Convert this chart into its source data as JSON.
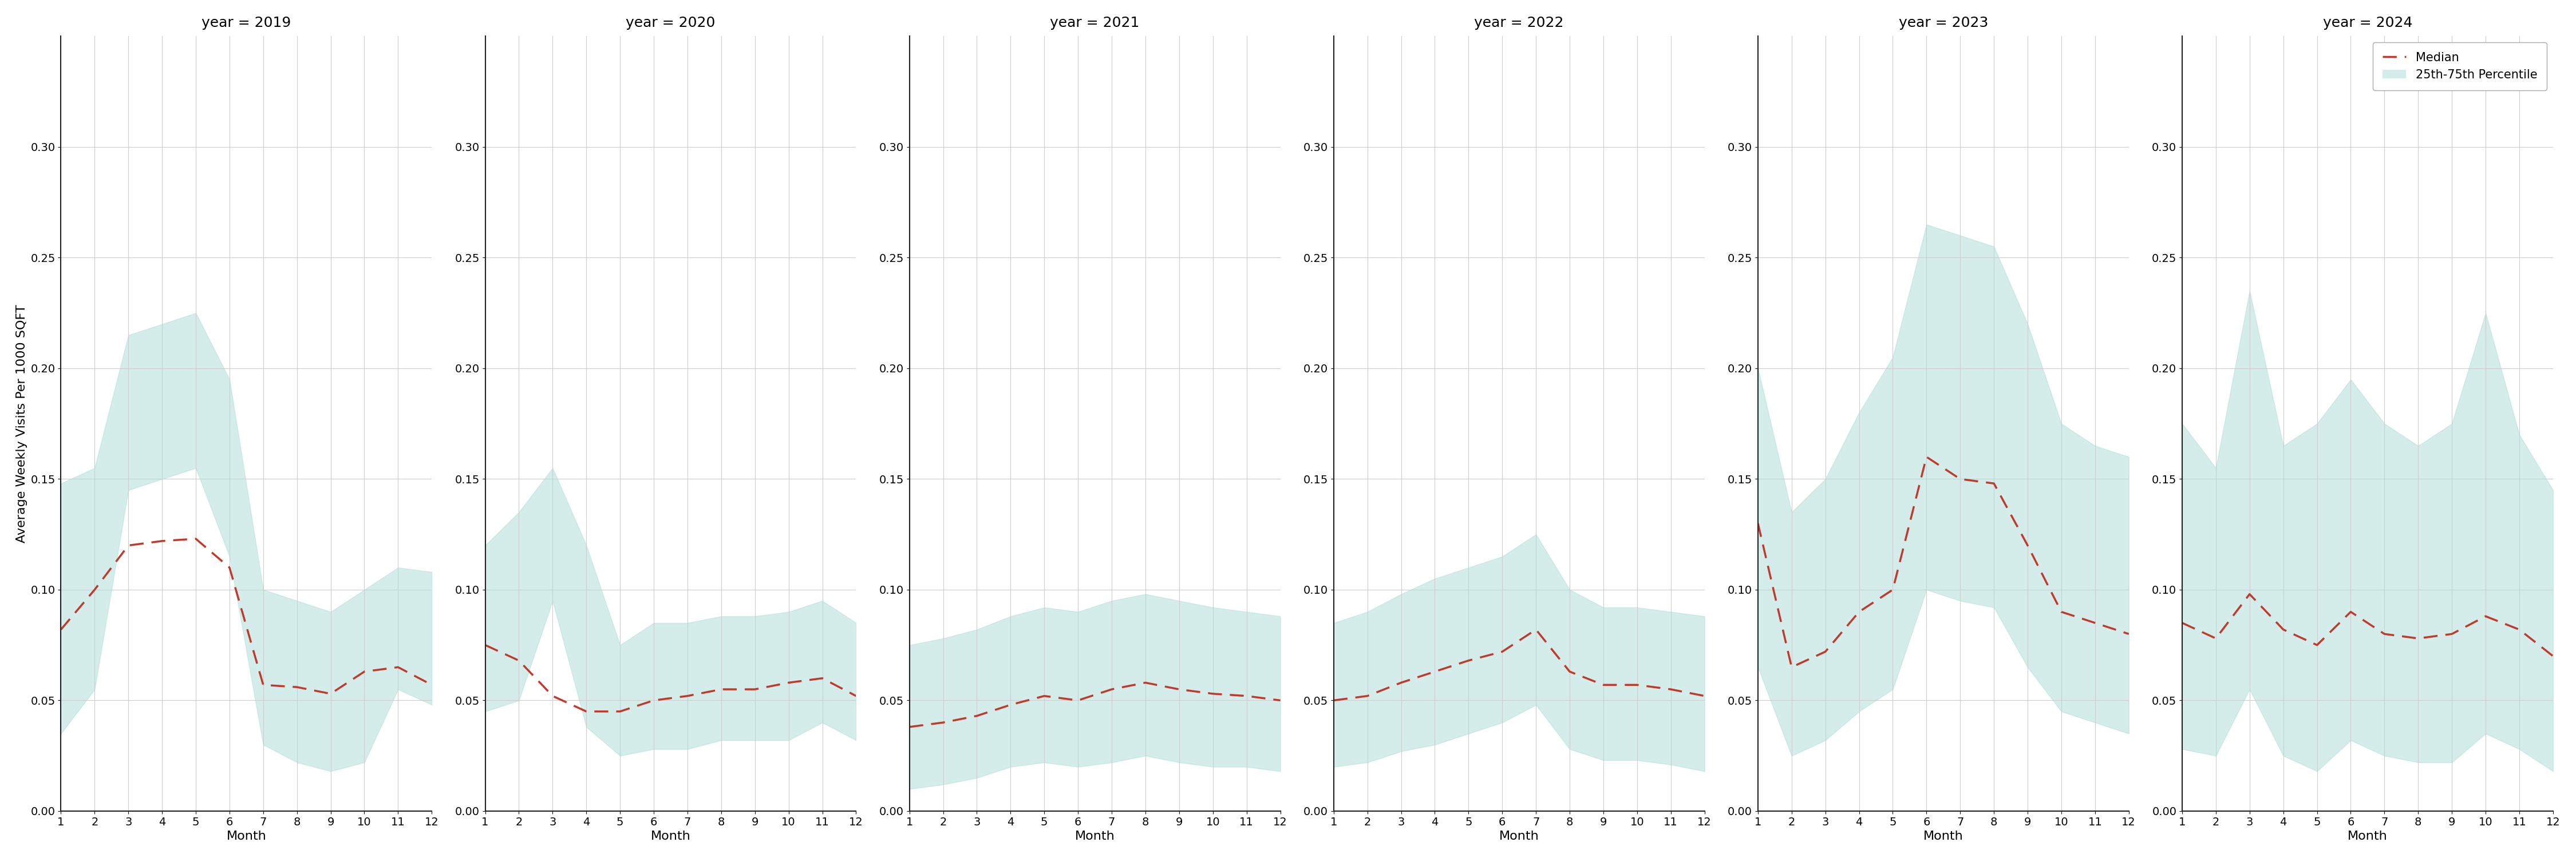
{
  "years": [
    2019,
    2020,
    2021,
    2022,
    2023,
    2024
  ],
  "months": [
    1,
    2,
    3,
    4,
    5,
    6,
    7,
    8,
    9,
    10,
    11,
    12
  ],
  "median": {
    "2019": [
      0.082,
      0.1,
      0.12,
      0.122,
      0.123,
      0.11,
      0.057,
      0.056,
      0.053,
      0.063,
      0.065,
      0.057
    ],
    "2020": [
      0.075,
      0.068,
      0.052,
      0.045,
      0.045,
      0.05,
      0.052,
      0.055,
      0.055,
      0.058,
      0.06,
      0.052
    ],
    "2021": [
      0.038,
      0.04,
      0.043,
      0.048,
      0.052,
      0.05,
      0.055,
      0.058,
      0.055,
      0.053,
      0.052,
      0.05
    ],
    "2022": [
      0.05,
      0.052,
      0.058,
      0.063,
      0.068,
      0.072,
      0.082,
      0.063,
      0.057,
      0.057,
      0.055,
      0.052
    ],
    "2023": [
      0.13,
      0.065,
      0.072,
      0.09,
      0.1,
      0.16,
      0.15,
      0.148,
      0.12,
      0.09,
      0.085,
      0.08
    ],
    "2024": [
      0.085,
      0.078,
      0.098,
      0.082,
      0.075,
      0.09,
      0.08,
      0.078,
      0.08,
      0.088,
      0.082,
      0.07
    ]
  },
  "p25": {
    "2019": [
      0.035,
      0.055,
      0.145,
      0.15,
      0.155,
      0.115,
      0.03,
      0.022,
      0.018,
      0.022,
      0.055,
      0.048
    ],
    "2020": [
      0.045,
      0.05,
      0.095,
      0.038,
      0.025,
      0.028,
      0.028,
      0.032,
      0.032,
      0.032,
      0.04,
      0.032
    ],
    "2021": [
      0.01,
      0.012,
      0.015,
      0.02,
      0.022,
      0.02,
      0.022,
      0.025,
      0.022,
      0.02,
      0.02,
      0.018
    ],
    "2022": [
      0.02,
      0.022,
      0.027,
      0.03,
      0.035,
      0.04,
      0.048,
      0.028,
      0.023,
      0.023,
      0.021,
      0.018
    ],
    "2023": [
      0.065,
      0.025,
      0.032,
      0.045,
      0.055,
      0.1,
      0.095,
      0.092,
      0.065,
      0.045,
      0.04,
      0.035
    ],
    "2024": [
      0.028,
      0.025,
      0.055,
      0.025,
      0.018,
      0.032,
      0.025,
      0.022,
      0.022,
      0.035,
      0.028,
      0.018
    ]
  },
  "p75": {
    "2019": [
      0.148,
      0.155,
      0.215,
      0.22,
      0.225,
      0.195,
      0.1,
      0.095,
      0.09,
      0.1,
      0.11,
      0.108
    ],
    "2020": [
      0.12,
      0.135,
      0.155,
      0.12,
      0.075,
      0.085,
      0.085,
      0.088,
      0.088,
      0.09,
      0.095,
      0.085
    ],
    "2021": [
      0.075,
      0.078,
      0.082,
      0.088,
      0.092,
      0.09,
      0.095,
      0.098,
      0.095,
      0.092,
      0.09,
      0.088
    ],
    "2022": [
      0.085,
      0.09,
      0.098,
      0.105,
      0.11,
      0.115,
      0.125,
      0.1,
      0.092,
      0.092,
      0.09,
      0.088
    ],
    "2023": [
      0.2,
      0.135,
      0.15,
      0.18,
      0.205,
      0.265,
      0.26,
      0.255,
      0.22,
      0.175,
      0.165,
      0.16
    ],
    "2024": [
      0.175,
      0.155,
      0.235,
      0.165,
      0.175,
      0.195,
      0.175,
      0.165,
      0.175,
      0.225,
      0.17,
      0.145
    ]
  },
  "fill_color": "#b2dfdb",
  "fill_alpha": 0.55,
  "line_color": "#c0392b",
  "ylabel": "Average Weekly Visits Per 1000 SQFT",
  "xlabel": "Month",
  "ylim": [
    0.0,
    0.35
  ],
  "yticks": [
    0.0,
    0.05,
    0.1,
    0.15,
    0.2,
    0.25,
    0.3
  ],
  "xticks": [
    1,
    2,
    3,
    4,
    5,
    6,
    7,
    8,
    9,
    10,
    11,
    12
  ],
  "legend_median_label": "Median",
  "legend_fill_label": "25th-75th Percentile",
  "grid_color": "#cccccc",
  "spine_color": "#222222",
  "title_fontsize": 18,
  "label_fontsize": 16,
  "tick_fontsize": 14
}
